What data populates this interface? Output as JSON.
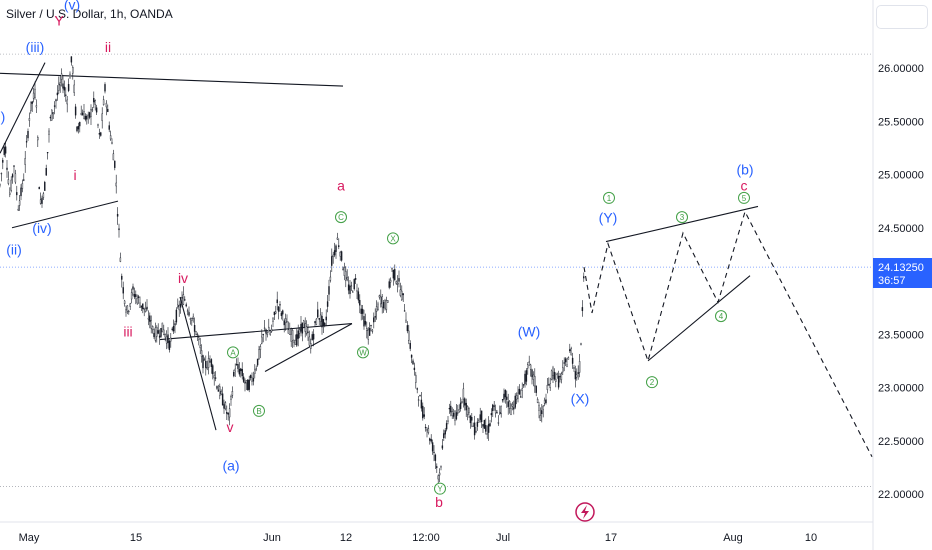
{
  "title": "Silver / U.S. Dollar, 1h, OANDA",
  "colors": {
    "candle": "#131722",
    "blue": "#2962ff",
    "red": "#d81b60",
    "green": "#43a047",
    "price_tag_bg": "#2962ff",
    "axis_text": "#131722"
  },
  "price_tag": {
    "price": "24.13250",
    "countdown": "36:57"
  },
  "chart_data": {
    "type": "candlestick",
    "y_ticks": [
      "26.00000",
      "25.50000",
      "25.00000",
      "24.50000",
      "24.00000",
      "23.50000",
      "23.00000",
      "22.50000",
      "22.00000"
    ],
    "x_ticks": [
      "May",
      "15",
      "Jun",
      "12",
      "12:00",
      "Jul",
      "17",
      "Aug",
      "10"
    ],
    "ylim": [
      21.8,
      26.4
    ],
    "grid": false,
    "price_path": [
      {
        "x": 0,
        "y": 24.9
      },
      {
        "x": 5,
        "y": 25.3
      },
      {
        "x": 10,
        "y": 24.8
      },
      {
        "x": 14,
        "y": 25.1
      },
      {
        "x": 18,
        "y": 24.7
      },
      {
        "x": 23,
        "y": 24.9
      },
      {
        "x": 30,
        "y": 25.6
      },
      {
        "x": 36,
        "y": 25.8
      },
      {
        "x": 40,
        "y": 24.7
      },
      {
        "x": 45,
        "y": 24.9
      },
      {
        "x": 50,
        "y": 25.5
      },
      {
        "x": 56,
        "y": 25.7
      },
      {
        "x": 62,
        "y": 25.9
      },
      {
        "x": 67,
        "y": 25.7
      },
      {
        "x": 72,
        "y": 26.1
      },
      {
        "x": 77,
        "y": 25.4
      },
      {
        "x": 82,
        "y": 25.6
      },
      {
        "x": 88,
        "y": 25.5
      },
      {
        "x": 95,
        "y": 25.7
      },
      {
        "x": 100,
        "y": 25.3
      },
      {
        "x": 105,
        "y": 25.8
      },
      {
        "x": 110,
        "y": 25.4
      },
      {
        "x": 115,
        "y": 25.1
      },
      {
        "x": 118,
        "y": 24.6
      },
      {
        "x": 122,
        "y": 24.0
      },
      {
        "x": 127,
        "y": 23.7
      },
      {
        "x": 133,
        "y": 23.9
      },
      {
        "x": 140,
        "y": 23.8
      },
      {
        "x": 147,
        "y": 23.7
      },
      {
        "x": 155,
        "y": 23.5
      },
      {
        "x": 163,
        "y": 23.55
      },
      {
        "x": 170,
        "y": 23.4
      },
      {
        "x": 177,
        "y": 23.7
      },
      {
        "x": 184,
        "y": 23.85
      },
      {
        "x": 190,
        "y": 23.7
      },
      {
        "x": 197,
        "y": 23.5
      },
      {
        "x": 204,
        "y": 23.2
      },
      {
        "x": 211,
        "y": 23.25
      },
      {
        "x": 218,
        "y": 23.0
      },
      {
        "x": 224,
        "y": 22.85
      },
      {
        "x": 229,
        "y": 22.7
      },
      {
        "x": 235,
        "y": 23.2
      },
      {
        "x": 241,
        "y": 23.15
      },
      {
        "x": 247,
        "y": 23.0
      },
      {
        "x": 253,
        "y": 23.1
      },
      {
        "x": 259,
        "y": 23.3
      },
      {
        "x": 265,
        "y": 23.55
      },
      {
        "x": 271,
        "y": 23.5
      },
      {
        "x": 277,
        "y": 23.8
      },
      {
        "x": 284,
        "y": 23.65
      },
      {
        "x": 290,
        "y": 23.5
      },
      {
        "x": 297,
        "y": 23.45
      },
      {
        "x": 304,
        "y": 23.6
      },
      {
        "x": 311,
        "y": 23.4
      },
      {
        "x": 318,
        "y": 23.7
      },
      {
        "x": 325,
        "y": 23.55
      },
      {
        "x": 332,
        "y": 24.2
      },
      {
        "x": 338,
        "y": 24.4
      },
      {
        "x": 344,
        "y": 24.1
      },
      {
        "x": 350,
        "y": 23.9
      },
      {
        "x": 356,
        "y": 24.0
      },
      {
        "x": 362,
        "y": 23.7
      },
      {
        "x": 368,
        "y": 23.5
      },
      {
        "x": 374,
        "y": 23.6
      },
      {
        "x": 380,
        "y": 23.85
      },
      {
        "x": 386,
        "y": 23.75
      },
      {
        "x": 392,
        "y": 24.1
      },
      {
        "x": 398,
        "y": 24.0
      },
      {
        "x": 404,
        "y": 23.8
      },
      {
        "x": 410,
        "y": 23.4
      },
      {
        "x": 416,
        "y": 23.05
      },
      {
        "x": 422,
        "y": 22.8
      },
      {
        "x": 428,
        "y": 22.6
      },
      {
        "x": 434,
        "y": 22.4
      },
      {
        "x": 439,
        "y": 22.15
      },
      {
        "x": 445,
        "y": 22.6
      },
      {
        "x": 451,
        "y": 22.8
      },
      {
        "x": 457,
        "y": 22.7
      },
      {
        "x": 463,
        "y": 22.95
      },
      {
        "x": 469,
        "y": 22.75
      },
      {
        "x": 475,
        "y": 22.6
      },
      {
        "x": 481,
        "y": 22.75
      },
      {
        "x": 487,
        "y": 22.55
      },
      {
        "x": 493,
        "y": 22.8
      },
      {
        "x": 499,
        "y": 22.7
      },
      {
        "x": 505,
        "y": 22.95
      },
      {
        "x": 511,
        "y": 22.8
      },
      {
        "x": 517,
        "y": 22.9
      },
      {
        "x": 523,
        "y": 23.0
      },
      {
        "x": 529,
        "y": 23.2
      },
      {
        "x": 535,
        "y": 23.05
      },
      {
        "x": 541,
        "y": 22.7
      },
      {
        "x": 547,
        "y": 22.95
      },
      {
        "x": 553,
        "y": 23.15
      },
      {
        "x": 559,
        "y": 23.05
      },
      {
        "x": 565,
        "y": 23.2
      },
      {
        "x": 571,
        "y": 23.35
      },
      {
        "x": 576,
        "y": 23.1
      },
      {
        "x": 580,
        "y": 23.2
      },
      {
        "x": 584,
        "y": 24.13
      }
    ],
    "projection_path": [
      {
        "x": 584,
        "y": 24.13
      },
      {
        "x": 592,
        "y": 23.7
      },
      {
        "x": 608,
        "y": 24.35
      },
      {
        "x": 648,
        "y": 23.25
      },
      {
        "x": 683,
        "y": 24.45
      },
      {
        "x": 718,
        "y": 23.8
      },
      {
        "x": 745,
        "y": 24.65
      },
      {
        "x": 872,
        "y": 22.35
      }
    ],
    "trendlines": [
      {
        "from": {
          "x": 0,
          "y": 25.95
        },
        "to": {
          "x": 343,
          "y": 25.83
        }
      },
      {
        "from": {
          "x": 12,
          "y": 24.5
        },
        "to": {
          "x": 118,
          "y": 24.75
        }
      },
      {
        "from": {
          "x": 0,
          "y": 25.2
        },
        "to": {
          "x": 45,
          "y": 26.05
        }
      },
      {
        "from": {
          "x": 160,
          "y": 23.45
        },
        "to": {
          "x": 352,
          "y": 23.6
        }
      },
      {
        "from": {
          "x": 265,
          "y": 23.15
        },
        "to": {
          "x": 352,
          "y": 23.6
        }
      },
      {
        "from": {
          "x": 180,
          "y": 23.85
        },
        "to": {
          "x": 216,
          "y": 22.6
        }
      },
      {
        "from": {
          "x": 606,
          "y": 24.37
        },
        "to": {
          "x": 758,
          "y": 24.7
        }
      },
      {
        "from": {
          "x": 648,
          "y": 23.25
        },
        "to": {
          "x": 750,
          "y": 24.05
        }
      }
    ],
    "wave_labels": [
      {
        "text": "(v)",
        "color": "blue",
        "x": 72,
        "y": 26.55
      },
      {
        "text": "Y",
        "color": "red",
        "x": 59,
        "y": 26.4
      },
      {
        "text": "(iii)",
        "color": "blue",
        "x": 35,
        "y": 26.15
      },
      {
        "text": "ii",
        "color": "red",
        "x": 108,
        "y": 26.15
      },
      {
        "text": ")",
        "color": "blue",
        "x": 3,
        "y": 25.5
      },
      {
        "text": "i",
        "color": "red",
        "x": 75,
        "y": 24.95
      },
      {
        "text": "(iv)",
        "color": "blue",
        "x": 42,
        "y": 24.45
      },
      {
        "text": "(ii)",
        "color": "blue",
        "x": 14,
        "y": 24.25
      },
      {
        "text": "a",
        "color": "red",
        "x": 341,
        "y": 24.85
      },
      {
        "text": "iv",
        "color": "red",
        "x": 183,
        "y": 23.98
      },
      {
        "text": "iii",
        "color": "red",
        "x": 128,
        "y": 23.48
      },
      {
        "text": "v",
        "color": "red",
        "x": 230,
        "y": 22.58
      },
      {
        "text": "(a)",
        "color": "blue",
        "x": 231,
        "y": 22.22
      },
      {
        "text": "b",
        "color": "red",
        "x": 439,
        "y": 21.88
      },
      {
        "text": "(W)",
        "color": "blue",
        "x": 529,
        "y": 23.48
      },
      {
        "text": "(X)",
        "color": "blue",
        "x": 580,
        "y": 22.85
      },
      {
        "text": "(Y)",
        "color": "blue",
        "x": 608,
        "y": 24.55
      },
      {
        "text": "(b)",
        "color": "blue",
        "x": 745,
        "y": 25.0
      },
      {
        "text": "c",
        "color": "red",
        "x": 744,
        "y": 24.85
      }
    ],
    "circle_labels": [
      {
        "text": "C",
        "x": 341,
        "y": 24.6
      },
      {
        "text": "X",
        "x": 393,
        "y": 24.4
      },
      {
        "text": "A",
        "x": 233,
        "y": 23.33
      },
      {
        "text": "W",
        "x": 363,
        "y": 23.33
      },
      {
        "text": "B",
        "x": 259,
        "y": 22.78
      },
      {
        "text": "Y",
        "x": 440,
        "y": 22.05
      },
      {
        "text": "1",
        "x": 609,
        "y": 24.78
      },
      {
        "text": "3",
        "x": 682,
        "y": 24.6
      },
      {
        "text": "5",
        "x": 744,
        "y": 24.78
      },
      {
        "text": "4",
        "x": 721,
        "y": 23.67
      },
      {
        "text": "2",
        "x": 652,
        "y": 23.05
      }
    ]
  }
}
